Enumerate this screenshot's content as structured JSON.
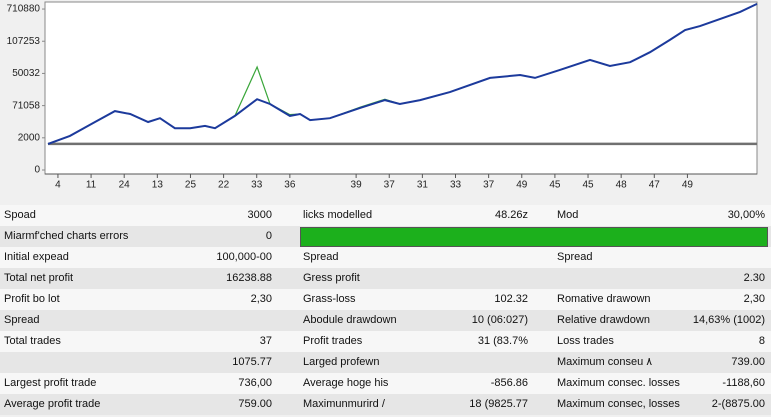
{
  "chart_data": {
    "type": "line",
    "xlim": [
      0.7,
      22.1
    ],
    "ylim": [
      0,
      5.2
    ],
    "xticks": [
      {
        "value": 1,
        "label": "4"
      },
      {
        "value": 2,
        "label": "11"
      },
      {
        "value": 3,
        "label": "24"
      },
      {
        "value": 4,
        "label": "13"
      },
      {
        "value": 5,
        "label": "25"
      },
      {
        "value": 6,
        "label": "22"
      },
      {
        "value": 7,
        "label": "33"
      },
      {
        "value": 8,
        "label": "36"
      },
      {
        "value": 10,
        "label": "39"
      },
      {
        "value": 11,
        "label": "37"
      },
      {
        "value": 12,
        "label": "31"
      },
      {
        "value": 13,
        "label": "33"
      },
      {
        "value": 14,
        "label": "37"
      },
      {
        "value": 15,
        "label": "49"
      },
      {
        "value": 16,
        "label": "45"
      },
      {
        "value": 17,
        "label": "45"
      },
      {
        "value": 18,
        "label": "48"
      },
      {
        "value": 19,
        "label": "47"
      },
      {
        "value": 20,
        "label": "49"
      }
    ],
    "yticks": [
      {
        "value": 0,
        "label": "0"
      },
      {
        "value": 1,
        "label": "2000"
      },
      {
        "value": 2,
        "label": "71058"
      },
      {
        "value": 3,
        "label": "50032"
      },
      {
        "value": 4,
        "label": "107253"
      },
      {
        "value": 5,
        "label": "710880"
      }
    ],
    "series": [
      {
        "color": "#707070",
        "x": [
          0.7,
          22.1
        ],
        "values": [
          0.81,
          0.81
        ]
      },
      {
        "color": "#3aa63a",
        "x": [
          0.7,
          1.36,
          2.12,
          2.72,
          3.18,
          3.72,
          4.08,
          4.53,
          4.99,
          5.44,
          5.74,
          6.34,
          7.01,
          7.4,
          8.0,
          8.31,
          8.61,
          9.21,
          10.12,
          10.87,
          11.32,
          11.93,
          12.83,
          14.04,
          14.95,
          15.4,
          16.15,
          17.06,
          17.66,
          18.27,
          18.87,
          19.47,
          19.93,
          20.38,
          21.59,
          22.1
        ],
        "values": [
          0.81,
          1.06,
          1.49,
          1.83,
          1.74,
          1.49,
          1.61,
          1.3,
          1.3,
          1.37,
          1.3,
          1.68,
          3.2,
          2.05,
          1.72,
          1.74,
          1.55,
          1.61,
          1.95,
          2.2,
          2.05,
          2.17,
          2.42,
          2.86,
          2.95,
          2.86,
          3.11,
          3.42,
          3.23,
          3.35,
          3.66,
          4.04,
          4.35,
          4.47,
          4.91,
          5.16
        ]
      },
      {
        "color": "#1c3a9c",
        "x": [
          0.7,
          1.36,
          2.12,
          2.72,
          3.18,
          3.72,
          4.08,
          4.53,
          4.99,
          5.44,
          5.74,
          6.34,
          7.01,
          7.4,
          8.0,
          8.31,
          8.61,
          9.21,
          10.12,
          10.87,
          11.32,
          11.93,
          12.83,
          14.04,
          14.95,
          15.4,
          16.15,
          17.06,
          17.66,
          18.27,
          18.87,
          19.47,
          19.93,
          20.38,
          21.59,
          22.1
        ],
        "values": [
          0.81,
          1.06,
          1.49,
          1.83,
          1.74,
          1.49,
          1.61,
          1.3,
          1.3,
          1.37,
          1.3,
          1.68,
          2.2,
          2.05,
          1.68,
          1.74,
          1.55,
          1.61,
          1.93,
          2.17,
          2.05,
          2.17,
          2.42,
          2.86,
          2.95,
          2.86,
          3.11,
          3.42,
          3.23,
          3.35,
          3.66,
          4.04,
          4.35,
          4.47,
          4.91,
          5.16
        ]
      }
    ]
  },
  "table": {
    "rows": [
      [
        "Spoad",
        "3000",
        "licks modelled",
        "48.26z",
        "Mod",
        "30,00%"
      ],
      [
        "Miarmf'ched charts errors",
        "0",
        null,
        null,
        null,
        null
      ],
      [
        "Initial expead",
        "100,000-00",
        "Spread",
        null,
        "Spread",
        null
      ],
      [
        "Total net profit",
        "16238.88",
        "Gress profit",
        null,
        null,
        "2.30"
      ],
      [
        "Profit bo lot",
        "2,30",
        "Grass-loss",
        "102.32",
        "Romative drawown",
        "2,30"
      ],
      [
        "Spread",
        null,
        "Abodule drawdown",
        "10 (06:027)",
        "Relative drawdown",
        "14,63% (1002)"
      ],
      [
        "Total trades",
        "37",
        "Profit trades",
        "31 (83.7%",
        "Loss trades",
        "8"
      ],
      [
        null,
        "1075.77",
        "Larged profewn",
        null,
        "Maximum conseu ۸",
        "739.00"
      ],
      [
        "Largest profit trade",
        "736,00",
        "Average hoge his",
        "-856.86",
        "Maximum consec. losses",
        "-1188,60"
      ],
      [
        "Average profit trade",
        "759.00",
        "Maximunmurird /",
        "18 (9825.77",
        "Maximum consec, losses",
        "2-(8875.00"
      ]
    ]
  }
}
